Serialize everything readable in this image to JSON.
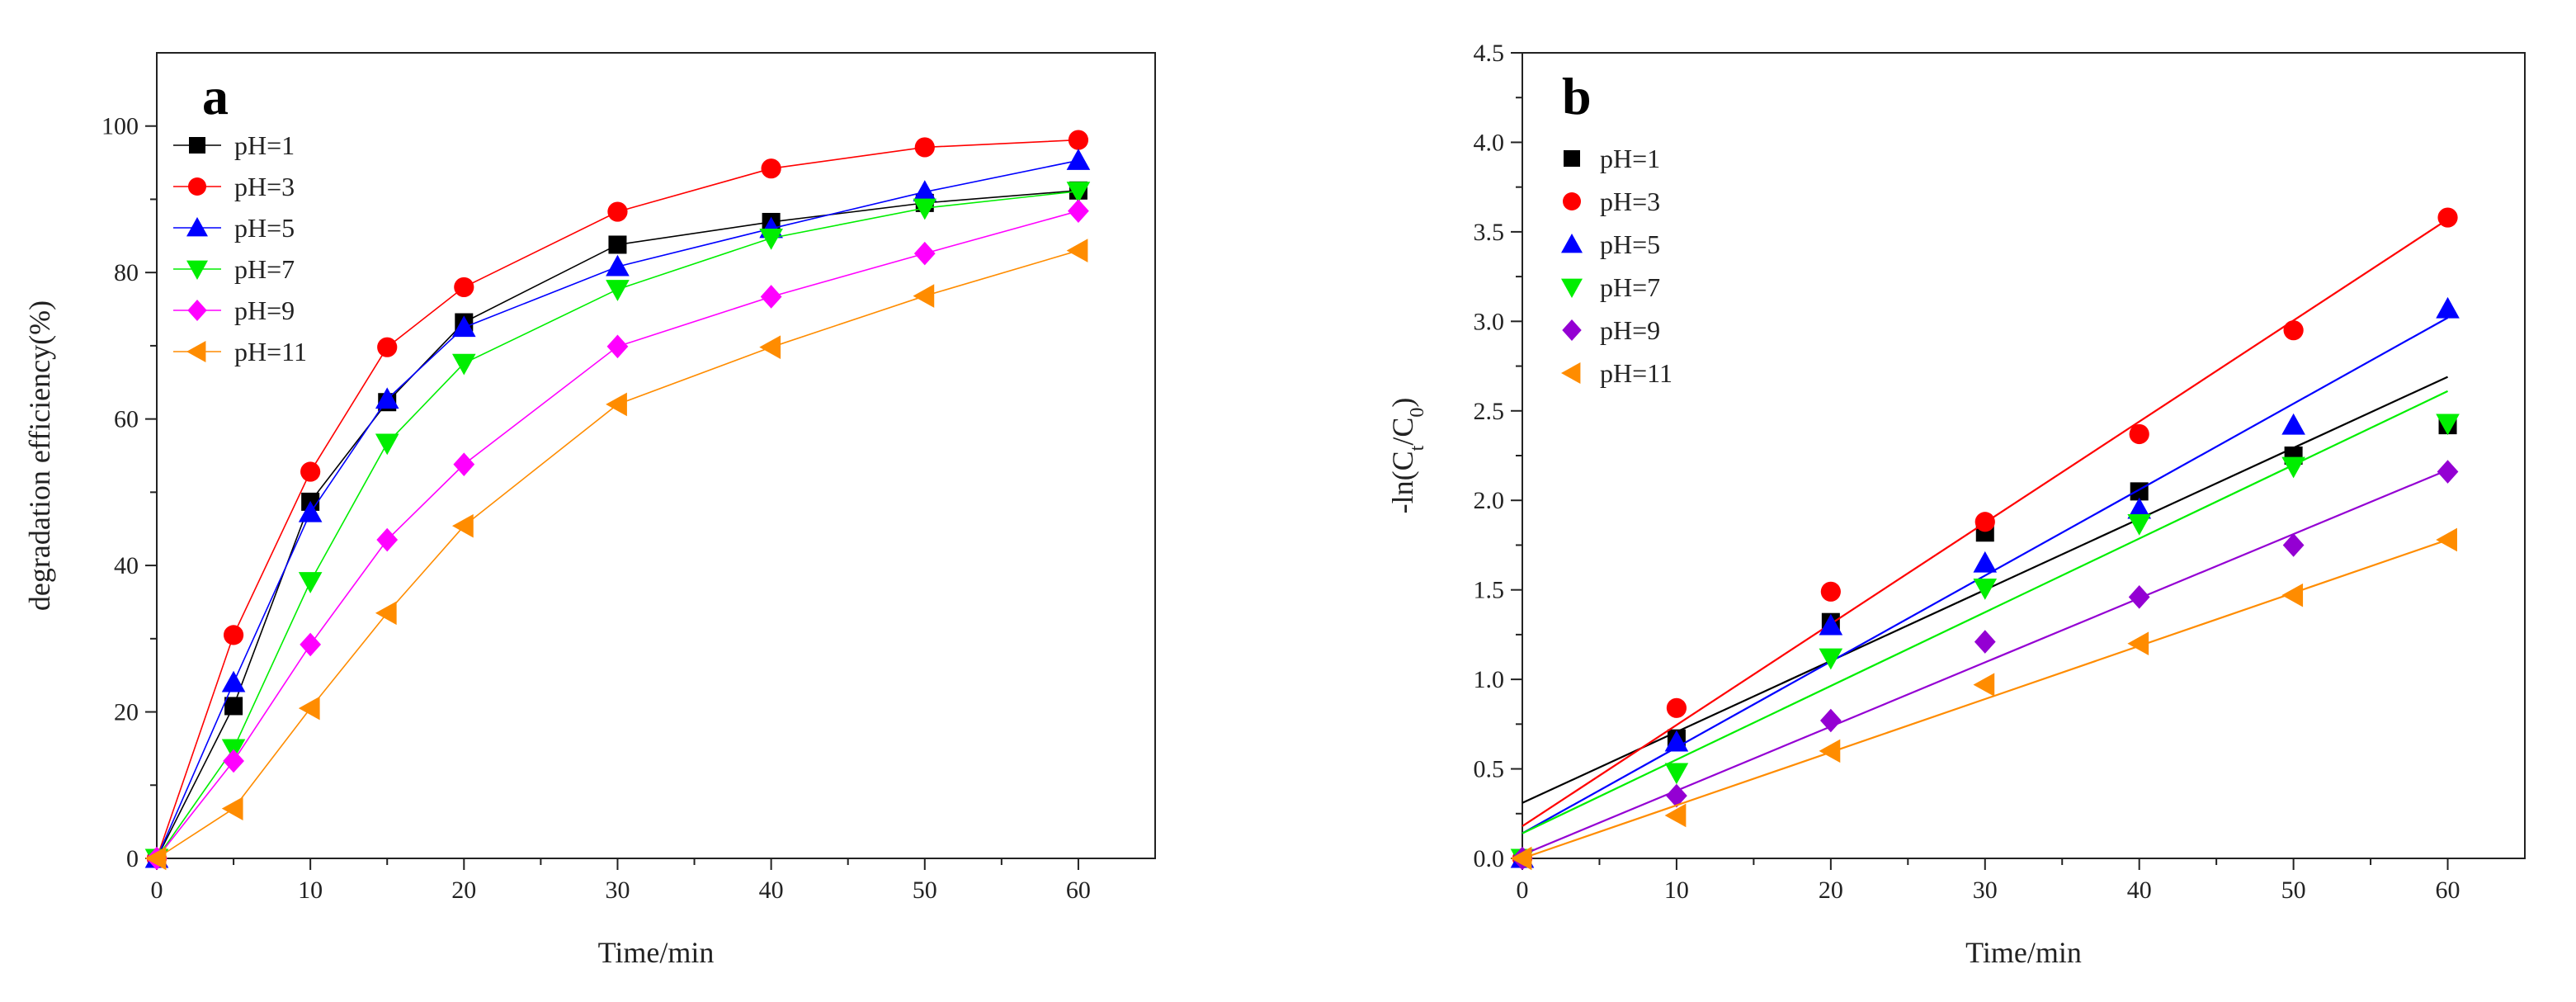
{
  "chart_data": [
    {
      "type": "line",
      "panel_label": "a",
      "xlabel": "Time/min",
      "ylabel": "degradation efficiency(%)",
      "xlim": [
        0,
        65
      ],
      "ylim": [
        0,
        110
      ],
      "xticks": [
        0,
        10,
        20,
        30,
        40,
        50,
        60
      ],
      "yticks": [
        0,
        20,
        40,
        60,
        80,
        100
      ],
      "x": [
        0,
        5,
        10,
        15,
        20,
        30,
        40,
        50,
        60
      ],
      "legend_position": "top-left",
      "series": [
        {
          "name": "pH=1",
          "color": "#000000",
          "marker": "square",
          "values": [
            0,
            20.8,
            48.7,
            62.3,
            73.2,
            83.8,
            86.9,
            89.5,
            91.2
          ]
        },
        {
          "name": "pH=3",
          "color": "#ff0000",
          "marker": "circle",
          "values": [
            0,
            30.5,
            52.8,
            69.8,
            78.0,
            88.3,
            94.2,
            97.1,
            98.1
          ]
        },
        {
          "name": "pH=5",
          "color": "#0000ff",
          "marker": "triangle-up",
          "values": [
            0,
            24.0,
            47.2,
            62.7,
            72.5,
            80.8,
            86.0,
            91.0,
            95.3
          ]
        },
        {
          "name": "pH=7",
          "color": "#00ee00",
          "marker": "triangle-down",
          "values": [
            0,
            15.0,
            37.8,
            56.7,
            67.6,
            77.7,
            84.7,
            88.8,
            91.1
          ]
        },
        {
          "name": "pH=9",
          "color": "#ff00ff",
          "marker": "diamond",
          "values": [
            0,
            13.3,
            29.2,
            43.5,
            53.8,
            69.9,
            76.7,
            82.6,
            88.4
          ]
        },
        {
          "name": "pH=11",
          "color": "#ff8c00",
          "marker": "triangle-left",
          "values": [
            0,
            6.8,
            20.5,
            33.5,
            45.4,
            62.0,
            69.8,
            76.8,
            83.0
          ]
        }
      ]
    },
    {
      "type": "scatter",
      "panel_label": "b",
      "xlabel": "Time/min",
      "ylabel_parts": {
        "prefix": "-ln(C",
        "sub1": "t",
        "mid": "/C",
        "sub2": "0",
        "suffix": ")"
      },
      "xlim": [
        0,
        65
      ],
      "ylim": [
        0,
        4.5
      ],
      "xticks": [
        0,
        10,
        20,
        30,
        40,
        50,
        60
      ],
      "yticks": [
        "0.0",
        "0.5",
        "1.0",
        "1.5",
        "2.0",
        "2.5",
        "3.0",
        "3.5",
        "4.0",
        "4.5"
      ],
      "x": [
        0,
        10,
        20,
        30,
        40,
        50,
        60
      ],
      "legend_position": "top-left",
      "series": [
        {
          "name": "pH=1",
          "color": "#000000",
          "marker": "square",
          "values": [
            0,
            0.67,
            1.32,
            1.82,
            2.05,
            2.25,
            2.42
          ],
          "fit": [
            0.31,
            2.69
          ]
        },
        {
          "name": "pH=3",
          "color": "#ff0000",
          "marker": "circle",
          "values": [
            0,
            0.84,
            1.49,
            1.88,
            2.37,
            2.95,
            3.58
          ],
          "fit": [
            0.18,
            3.57
          ]
        },
        {
          "name": "pH=5",
          "color": "#0000ff",
          "marker": "triangle-up",
          "values": [
            0,
            0.65,
            1.3,
            1.65,
            1.95,
            2.42,
            3.07
          ],
          "fit": [
            0.14,
            3.02
          ]
        },
        {
          "name": "pH=7",
          "color": "#00ee00",
          "marker": "triangle-down",
          "values": [
            0,
            0.48,
            1.12,
            1.51,
            1.87,
            2.19,
            2.43
          ],
          "fit": [
            0.14,
            2.61
          ]
        },
        {
          "name": "pH=9",
          "color": "#9400d3",
          "marker": "diamond",
          "values": [
            0,
            0.35,
            0.77,
            1.21,
            1.46,
            1.75,
            2.16
          ],
          "fit": [
            0.02,
            2.17
          ]
        },
        {
          "name": "pH=11",
          "color": "#ff8c00",
          "marker": "triangle-left",
          "values": [
            0,
            0.24,
            0.6,
            0.97,
            1.2,
            1.47,
            1.78
          ],
          "fit": [
            0.0,
            1.78
          ]
        }
      ]
    }
  ]
}
